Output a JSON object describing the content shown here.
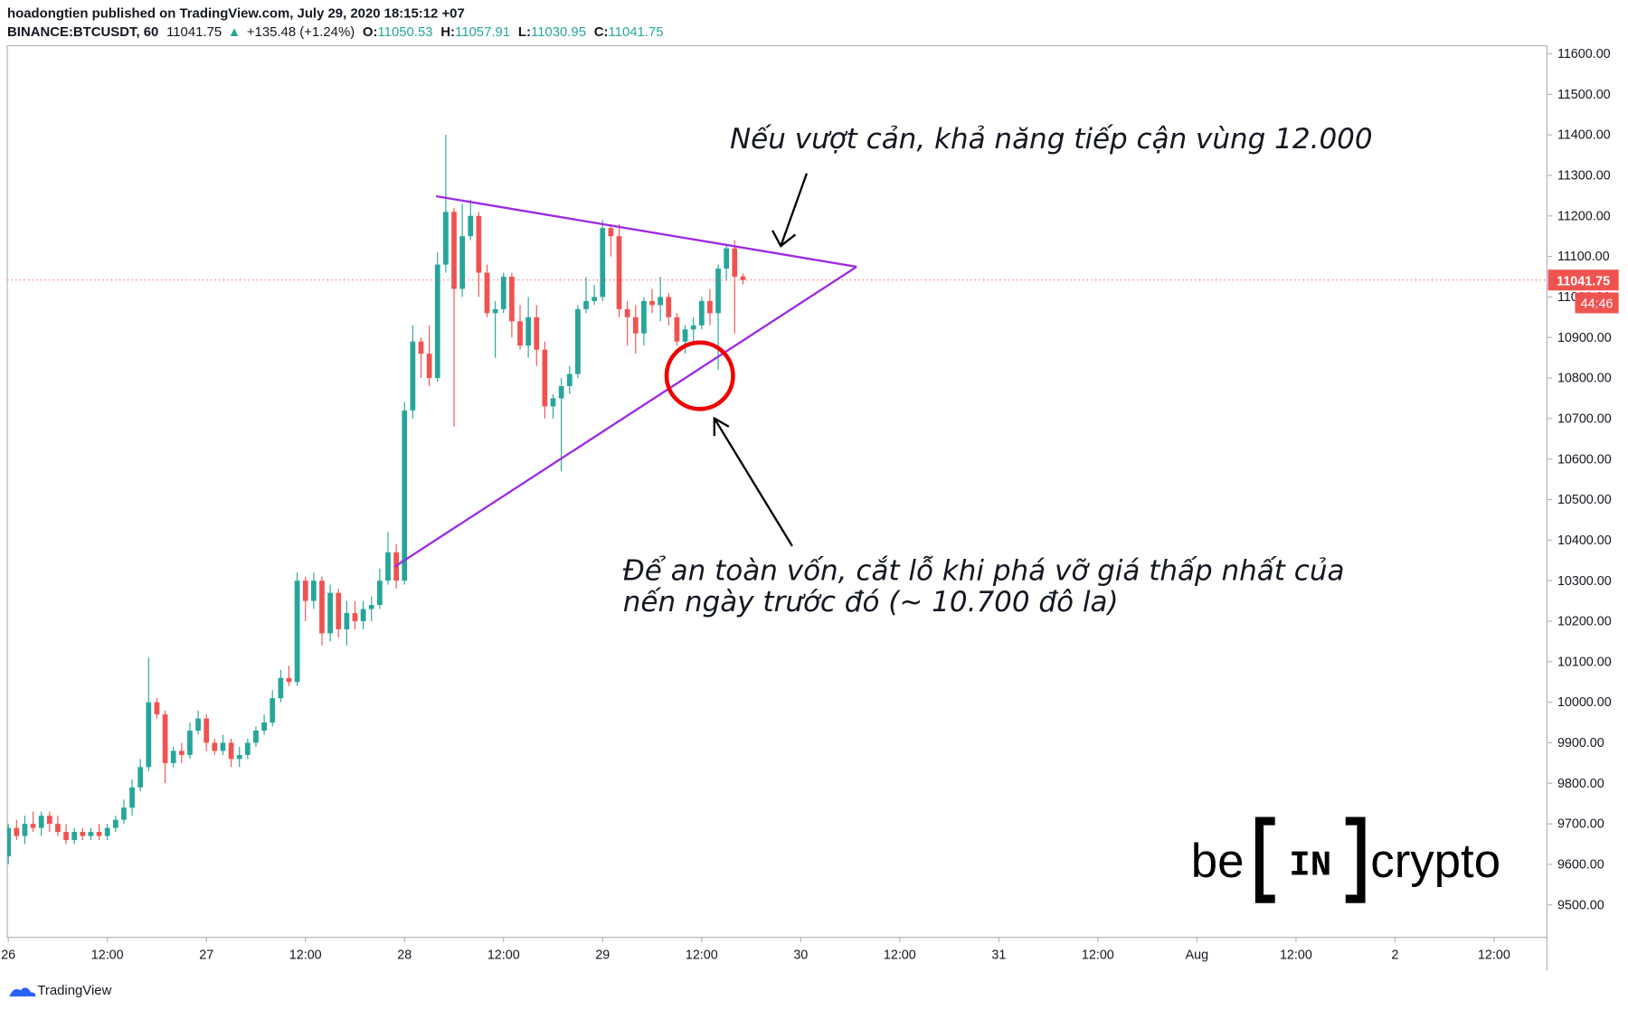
{
  "header": {
    "published": "hoadongtien published on TradingView.com, July 29, 2020 18:15:12 +07",
    "symbol": "BINANCE:BTCUSDT, 60",
    "last": 11041.75,
    "arrow": "▲",
    "change": "+135.48 (+1.24%)",
    "o_label": "O:",
    "o": 11050.53,
    "h_label": "H:",
    "h": 11057.91,
    "l_label": "L:",
    "l": 11030.95,
    "c_label": "C:",
    "c": 11041.75
  },
  "chart_data": {
    "type": "candlestick",
    "up_color": "#26a69a",
    "down_color": "#ef5350",
    "xticks": [
      "26",
      "12:00",
      "27",
      "12:00",
      "28",
      "12:00",
      "29",
      "12:00",
      "30",
      "12:00",
      "31",
      "12:00",
      "Aug",
      "12:00",
      "2",
      "12:00"
    ],
    "ylim": [
      9420,
      11620
    ],
    "yticks": [
      {
        "value": 9500,
        "label": "9500.00"
      },
      {
        "value": 9600,
        "label": "9600.00"
      },
      {
        "value": 9700,
        "label": "9700.00"
      },
      {
        "value": 9800,
        "label": "9800.00"
      },
      {
        "value": 9900,
        "label": "9900.00"
      },
      {
        "value": 10000,
        "label": "10000.00"
      },
      {
        "value": 10100,
        "label": "10100.00"
      },
      {
        "value": 10200,
        "label": "10200.00"
      },
      {
        "value": 10300,
        "label": "10300.00"
      },
      {
        "value": 10400,
        "label": "10400.00"
      },
      {
        "value": 10500,
        "label": "10500.00"
      },
      {
        "value": 10600,
        "label": "10600.00"
      },
      {
        "value": 10700,
        "label": "10700.00"
      },
      {
        "value": 10800,
        "label": "10800.00"
      },
      {
        "value": 10900,
        "label": "10900.00"
      },
      {
        "value": 11000,
        "label": "11000.00"
      },
      {
        "value": 11100,
        "label": "11100.00"
      },
      {
        "value": 11200,
        "label": "11200.00"
      },
      {
        "value": 11300,
        "label": "11300.00"
      },
      {
        "value": 11400,
        "label": "11400.00"
      },
      {
        "value": 11500,
        "label": "11500.00"
      },
      {
        "value": 11600,
        "label": "11600.00"
      }
    ],
    "open": [
      9620,
      9690,
      9670,
      9700,
      9690,
      9720,
      9700,
      9680,
      9660,
      9680,
      9670,
      9680,
      9670,
      9690,
      9710,
      9740,
      9790,
      9840,
      10000,
      9970,
      9850,
      9880,
      9870,
      9930,
      9960,
      9900,
      9880,
      9900,
      9860,
      9870,
      9900,
      9930,
      9950,
      10010,
      10060,
      10050,
      10300,
      10250,
      10300,
      10170,
      10270,
      10180,
      10220,
      10200,
      10230,
      10240,
      10300,
      10370,
      10300,
      10720,
      10890,
      10860,
      10800,
      11080,
      11210,
      11020,
      11150,
      11200,
      11060,
      10960,
      10970,
      11050,
      10940,
      10880,
      10950,
      10870,
      10730,
      10750,
      10780,
      10810,
      10970,
      10990,
      11000,
      11170,
      11150,
      10970,
      10950,
      10910,
      10990,
      10980,
      11000,
      10950,
      10890,
      10920,
      10930,
      10990,
      10960,
      11070,
      11120,
      11050.53
    ],
    "high": [
      9700,
      9710,
      9720,
      9730,
      9730,
      9730,
      9720,
      9700,
      9690,
      9690,
      9690,
      9700,
      9700,
      9720,
      9760,
      9810,
      9860,
      10110,
      10010,
      9980,
      9890,
      9900,
      9950,
      9980,
      9970,
      9910,
      9920,
      9910,
      9890,
      9910,
      9940,
      9970,
      10030,
      10080,
      10090,
      10320,
      10310,
      10320,
      10310,
      10290,
      10280,
      10250,
      10250,
      10250,
      10260,
      10330,
      10420,
      10390,
      10740,
      10930,
      10900,
      10930,
      11110,
      11400,
      11220,
      11230,
      11240,
      11210,
      11080,
      10990,
      11060,
      11060,
      10980,
      11000,
      10980,
      10890,
      10760,
      10800,
      10830,
      10980,
      11050,
      11030,
      11190,
      11180,
      11180,
      10990,
      10980,
      11000,
      11020,
      11050,
      11010,
      10960,
      10930,
      10950,
      11000,
      11020,
      11080,
      11130,
      11140,
      11057.91
    ],
    "low": [
      9600,
      9660,
      9650,
      9680,
      9670,
      9680,
      9670,
      9650,
      9650,
      9660,
      9660,
      9660,
      9660,
      9680,
      9700,
      9720,
      9780,
      9830,
      9960,
      9800,
      9840,
      9850,
      9860,
      9920,
      9880,
      9870,
      9870,
      9840,
      9840,
      9860,
      9890,
      9920,
      9940,
      10000,
      10040,
      10040,
      10200,
      10230,
      10140,
      10150,
      10160,
      10140,
      10180,
      10180,
      10200,
      10230,
      10290,
      10280,
      10290,
      10700,
      10800,
      10780,
      10790,
      11060,
      10680,
      11000,
      11140,
      11000,
      10950,
      10850,
      10960,
      10900,
      10870,
      10850,
      10830,
      10700,
      10700,
      10570,
      10760,
      10800,
      10960,
      10980,
      10990,
      11100,
      10950,
      10880,
      10860,
      10880,
      10960,
      10940,
      10930,
      10880,
      10860,
      10880,
      10920,
      10930,
      10820,
      11040,
      10910,
      11030.95
    ],
    "close": [
      9690,
      9670,
      9700,
      9690,
      9720,
      9700,
      9680,
      9660,
      9680,
      9670,
      9680,
      9670,
      9690,
      9710,
      9740,
      9790,
      9840,
      10000,
      9970,
      9850,
      9880,
      9870,
      9930,
      9960,
      9900,
      9880,
      9900,
      9860,
      9870,
      9900,
      9930,
      9950,
      10010,
      10060,
      10050,
      10300,
      10250,
      10300,
      10170,
      10270,
      10180,
      10220,
      10200,
      10230,
      10240,
      10300,
      10370,
      10300,
      10720,
      10890,
      10860,
      10800,
      11080,
      11210,
      11020,
      11150,
      11200,
      11060,
      10960,
      10970,
      11050,
      10940,
      10880,
      10950,
      10870,
      10730,
      10750,
      10780,
      10810,
      10970,
      10990,
      11000,
      11170,
      11150,
      10970,
      10950,
      10910,
      10990,
      10980,
      11000,
      10950,
      10890,
      10920,
      10930,
      10990,
      10960,
      11070,
      11120,
      11050,
      11041.75
    ],
    "price_label": 11041.75,
    "countdown": "44:46",
    "annotations": [
      "Nếu vượt cản, khả năng tiếp cận vùng 12.000",
      "Để an toàn vốn, cắt lỗ khi phá vỡ giá thấp nhất của",
      "nến ngày trước đó (~ 10.700 đô la)"
    ]
  },
  "logo": {
    "left": "be",
    "middle": "IN",
    "right": "crypto"
  },
  "footer": "TradingView"
}
